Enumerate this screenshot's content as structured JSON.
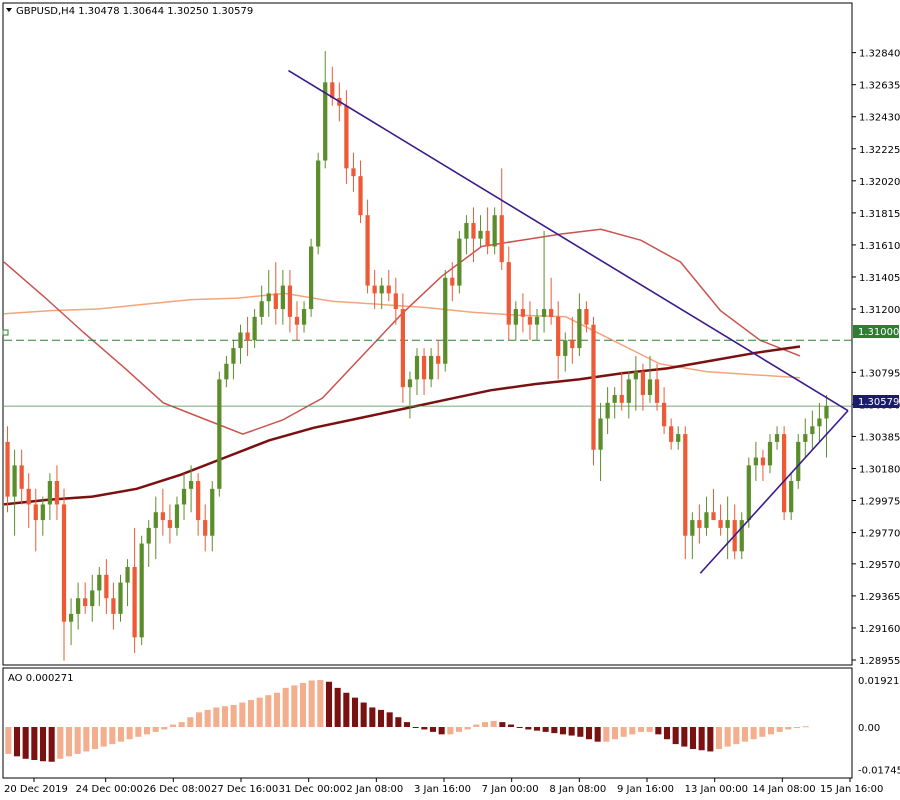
{
  "header": {
    "symbol_info": "GBPUSD,H4  1.30478 1.30644 1.30250 1.30579",
    "ao_label": "AO 0.000271"
  },
  "colors": {
    "bull": "#5b8e2a",
    "bear": "#ee5a36",
    "ma_fast": "#c9534f",
    "ma_mid": "#f4a37c",
    "ma_slow": "#7b1010",
    "trendline": "#3b1a8c",
    "hline": "#2e7d32",
    "ao_dark": "#7b1010",
    "ao_light": "#f4ad8d"
  },
  "chart_data": [
    {
      "type": "candlestick",
      "symbol": "GBPUSD",
      "timeframe": "H4",
      "ylim": [
        1.28955,
        1.3294
      ],
      "y_ticks": [
        "1.32840",
        "1.32635",
        "1.32430",
        "1.32225",
        "1.32020",
        "1.31815",
        "1.31610",
        "1.31405",
        "1.31200",
        "1.30795",
        "1.30590",
        "1.30385",
        "1.30180",
        "1.29975",
        "1.29770",
        "1.29570",
        "1.29365",
        "1.29160",
        "1.28955"
      ],
      "x_ticks": [
        "20 Dec 2019",
        "24 Dec 00:00",
        "26 Dec 08:00",
        "27 Dec 16:00",
        "31 Dec 00:00",
        "2 Jan 08:00",
        "3 Jan 16:00",
        "7 Jan 00:00",
        "8 Jan 08:00",
        "9 Jan 16:00",
        "13 Jan 00:00",
        "14 Jan 08:00",
        "15 Jan 16:00"
      ],
      "horizontal_level": {
        "value": 1.31,
        "label": "1.31000"
      },
      "last_price": {
        "value": 1.30579,
        "label": "1.30579"
      },
      "candles": [
        [
          1.3035,
          1.3045,
          1.299,
          1.3
        ],
        [
          1.3,
          1.303,
          1.2975,
          1.302
        ],
        [
          1.302,
          1.303,
          1.2995,
          1.3005
        ],
        [
          1.3005,
          1.3015,
          1.298,
          1.2995
        ],
        [
          1.2995,
          1.3005,
          1.2965,
          1.2985
        ],
        [
          1.2985,
          1.3,
          1.2975,
          1.2995
        ],
        [
          1.2995,
          1.3015,
          1.2985,
          1.301
        ],
        [
          1.301,
          1.302,
          1.2985,
          1.2995
        ],
        [
          1.2995,
          1.3005,
          1.2895,
          1.292
        ],
        [
          1.292,
          1.2935,
          1.2905,
          1.2925
        ],
        [
          1.2925,
          1.2945,
          1.2915,
          1.2935
        ],
        [
          1.2935,
          1.2945,
          1.2925,
          1.293
        ],
        [
          1.293,
          1.295,
          1.292,
          1.294
        ],
        [
          1.294,
          1.2955,
          1.293,
          1.295
        ],
        [
          1.295,
          1.296,
          1.2925,
          1.2935
        ],
        [
          1.2935,
          1.2945,
          1.2915,
          1.2925
        ],
        [
          1.2925,
          1.295,
          1.292,
          1.2945
        ],
        [
          1.2945,
          1.296,
          1.293,
          1.2955
        ],
        [
          1.2955,
          1.298,
          1.29,
          1.291
        ],
        [
          1.291,
          1.2975,
          1.2905,
          1.297
        ],
        [
          1.297,
          1.2985,
          1.2955,
          1.298
        ],
        [
          1.298,
          1.3,
          1.296,
          1.299
        ],
        [
          1.299,
          1.3005,
          1.2975,
          1.2985
        ],
        [
          1.2985,
          1.2995,
          1.297,
          1.298
        ],
        [
          1.298,
          1.3,
          1.2975,
          1.2995
        ],
        [
          1.2995,
          1.3015,
          1.2985,
          1.3005
        ],
        [
          1.3005,
          1.302,
          1.299,
          1.301
        ],
        [
          1.301,
          1.3015,
          1.2975,
          1.2985
        ],
        [
          1.2985,
          1.2995,
          1.2965,
          1.2975
        ],
        [
          1.2975,
          1.301,
          1.2965,
          1.3005
        ],
        [
          1.3005,
          1.308,
          1.3,
          1.3075
        ],
        [
          1.3075,
          1.309,
          1.307,
          1.3085
        ],
        [
          1.3085,
          1.31,
          1.3075,
          1.3095
        ],
        [
          1.3095,
          1.311,
          1.3085,
          1.3105
        ],
        [
          1.3105,
          1.3115,
          1.309,
          1.31
        ],
        [
          1.31,
          1.312,
          1.3095,
          1.3115
        ],
        [
          1.3115,
          1.3135,
          1.311,
          1.3125
        ],
        [
          1.3125,
          1.3145,
          1.3115,
          1.313
        ],
        [
          1.313,
          1.315,
          1.311,
          1.312
        ],
        [
          1.312,
          1.3145,
          1.311,
          1.3135
        ],
        [
          1.3135,
          1.3145,
          1.3105,
          1.3115
        ],
        [
          1.3115,
          1.3125,
          1.31,
          1.311
        ],
        [
          1.311,
          1.3125,
          1.3105,
          1.312
        ],
        [
          1.312,
          1.3165,
          1.3115,
          1.316
        ],
        [
          1.316,
          1.322,
          1.3155,
          1.3215
        ],
        [
          1.3215,
          1.3285,
          1.321,
          1.3265
        ],
        [
          1.3265,
          1.3275,
          1.325,
          1.3255
        ],
        [
          1.3255,
          1.3265,
          1.324,
          1.325
        ],
        [
          1.325,
          1.326,
          1.32,
          1.321
        ],
        [
          1.321,
          1.322,
          1.3195,
          1.3205
        ],
        [
          1.3205,
          1.3215,
          1.3175,
          1.318
        ],
        [
          1.318,
          1.319,
          1.313,
          1.3135
        ],
        [
          1.3135,
          1.3145,
          1.312,
          1.313
        ],
        [
          1.313,
          1.314,
          1.312,
          1.3135
        ],
        [
          1.3135,
          1.3145,
          1.3125,
          1.313
        ],
        [
          1.313,
          1.314,
          1.311,
          1.312
        ],
        [
          1.312,
          1.313,
          1.306,
          1.307
        ],
        [
          1.307,
          1.308,
          1.305,
          1.3075
        ],
        [
          1.3075,
          1.3095,
          1.3065,
          1.309
        ],
        [
          1.309,
          1.3095,
          1.3065,
          1.3075
        ],
        [
          1.3075,
          1.3095,
          1.307,
          1.309
        ],
        [
          1.309,
          1.31,
          1.3075,
          1.3085
        ],
        [
          1.3085,
          1.3145,
          1.308,
          1.314
        ],
        [
          1.314,
          1.315,
          1.3125,
          1.3135
        ],
        [
          1.3135,
          1.317,
          1.313,
          1.3165
        ],
        [
          1.3165,
          1.318,
          1.3155,
          1.3175
        ],
        [
          1.3175,
          1.3185,
          1.315,
          1.3165
        ],
        [
          1.3165,
          1.318,
          1.316,
          1.317
        ],
        [
          1.317,
          1.3185,
          1.3155,
          1.316
        ],
        [
          1.316,
          1.3185,
          1.3155,
          1.318
        ],
        [
          1.318,
          1.321,
          1.3145,
          1.315
        ],
        [
          1.315,
          1.316,
          1.31,
          1.311
        ],
        [
          1.311,
          1.3125,
          1.31,
          1.312
        ],
        [
          1.312,
          1.313,
          1.3105,
          1.3115
        ],
        [
          1.3115,
          1.3125,
          1.31,
          1.311
        ],
        [
          1.311,
          1.312,
          1.31,
          1.3115
        ],
        [
          1.3115,
          1.317,
          1.3105,
          1.312
        ],
        [
          1.312,
          1.314,
          1.311,
          1.3115
        ],
        [
          1.3115,
          1.3125,
          1.3075,
          1.309
        ],
        [
          1.309,
          1.3105,
          1.308,
          1.31
        ],
        [
          1.31,
          1.3115,
          1.3085,
          1.3095
        ],
        [
          1.3095,
          1.313,
          1.309,
          1.312
        ],
        [
          1.312,
          1.3125,
          1.3105,
          1.311
        ],
        [
          1.311,
          1.3115,
          1.302,
          1.303
        ],
        [
          1.303,
          1.306,
          1.301,
          1.305
        ],
        [
          1.305,
          1.307,
          1.304,
          1.306
        ],
        [
          1.306,
          1.307,
          1.305,
          1.3065
        ],
        [
          1.3065,
          1.308,
          1.3055,
          1.306
        ],
        [
          1.306,
          1.308,
          1.305,
          1.3075
        ],
        [
          1.3075,
          1.309,
          1.3055,
          1.308
        ],
        [
          1.308,
          1.3085,
          1.3055,
          1.3065
        ],
        [
          1.3065,
          1.309,
          1.306,
          1.3075
        ],
        [
          1.3075,
          1.3085,
          1.3055,
          1.306
        ],
        [
          1.306,
          1.307,
          1.304,
          1.3045
        ],
        [
          1.3045,
          1.305,
          1.303,
          1.3035
        ],
        [
          1.3035,
          1.3045,
          1.303,
          1.304
        ],
        [
          1.304,
          1.3045,
          1.296,
          1.2975
        ],
        [
          1.2975,
          1.299,
          1.296,
          1.2985
        ],
        [
          1.2985,
          1.2995,
          1.297,
          1.298
        ],
        [
          1.298,
          1.3,
          1.2975,
          1.299
        ],
        [
          1.299,
          1.3005,
          1.2985,
          1.2985
        ],
        [
          1.2985,
          1.2995,
          1.2975,
          1.298
        ],
        [
          1.298,
          1.3,
          1.296,
          1.2985
        ],
        [
          1.2985,
          1.2995,
          1.296,
          1.2965
        ],
        [
          1.2965,
          1.299,
          1.296,
          1.2985
        ],
        [
          1.2985,
          1.3025,
          1.298,
          1.302
        ],
        [
          1.302,
          1.3035,
          1.301,
          1.3025
        ],
        [
          1.3025,
          1.303,
          1.301,
          1.302
        ],
        [
          1.302,
          1.304,
          1.3015,
          1.3035
        ],
        [
          1.3035,
          1.3045,
          1.303,
          1.304
        ],
        [
          1.304,
          1.3045,
          1.2985,
          1.299
        ],
        [
          1.299,
          1.3015,
          1.2985,
          1.301
        ],
        [
          1.301,
          1.304,
          1.3005,
          1.3035
        ],
        [
          1.3035,
          1.305,
          1.3025,
          1.304
        ],
        [
          1.304,
          1.3055,
          1.303,
          1.3045
        ],
        [
          1.3045,
          1.306,
          1.3035,
          1.305
        ],
        [
          1.305,
          1.3065,
          1.3025,
          1.3058
        ]
      ],
      "ma_fast": [
        1.315,
        1.3128,
        1.3105,
        1.3083,
        1.306,
        1.305,
        1.304,
        1.3049,
        1.3063,
        1.309,
        1.3117,
        1.3141,
        1.316,
        1.3164,
        1.3168,
        1.3171,
        1.3164,
        1.315,
        1.3119,
        1.31,
        1.309
      ],
      "ma_mid": [
        1.3117,
        1.3119,
        1.312,
        1.3123,
        1.3126,
        1.3127,
        1.313,
        1.3125,
        1.3123,
        1.3121,
        1.3118,
        1.3116,
        1.3115,
        1.31,
        1.3085,
        1.308,
        1.3078,
        1.3076
      ],
      "ma_slow": [
        1.2995,
        1.2998,
        1.3,
        1.3005,
        1.3014,
        1.3025,
        1.3036,
        1.3044,
        1.305,
        1.3056,
        1.3062,
        1.3068,
        1.3072,
        1.3075,
        1.3079,
        1.3082,
        1.3087,
        1.3092,
        1.3096
      ],
      "trendlines": [
        {
          "from": [
            0.337,
            1.32725
          ],
          "to": [
            0.985,
            1.3055
          ]
        },
        {
          "from": [
            0.825,
            1.2951
          ],
          "to": [
            0.985,
            1.3055
          ]
        }
      ]
    },
    {
      "type": "bar",
      "title": "AO",
      "ylim": [
        -0.017456,
        0.019217
      ],
      "y_ticks": [
        "0.019217",
        "0.00",
        "-0.017456"
      ],
      "values": [
        -0.011,
        -0.012,
        -0.013,
        -0.0135,
        -0.014,
        -0.0142,
        -0.013,
        -0.012,
        -0.011,
        -0.01,
        -0.009,
        -0.008,
        -0.007,
        -0.006,
        -0.005,
        -0.004,
        -0.003,
        -0.002,
        -0.001,
        0.001,
        0.002,
        0.004,
        0.006,
        0.007,
        0.008,
        0.0085,
        0.009,
        0.01,
        0.011,
        0.012,
        0.013,
        0.014,
        0.016,
        0.017,
        0.018,
        0.019,
        0.0192,
        0.0185,
        0.016,
        0.014,
        0.012,
        0.01,
        0.008,
        0.007,
        0.006,
        0.004,
        0.002,
        0.0,
        -0.001,
        -0.002,
        -0.003,
        -0.003,
        -0.002,
        -0.001,
        0.001,
        0.002,
        0.0025,
        0.002,
        0.001,
        0.0,
        -0.001,
        -0.0015,
        -0.002,
        -0.0025,
        -0.003,
        -0.0035,
        -0.004,
        -0.005,
        -0.006,
        -0.006,
        -0.005,
        -0.004,
        -0.003,
        -0.002,
        -0.002,
        -0.003,
        -0.005,
        -0.007,
        -0.008,
        -0.009,
        -0.0095,
        -0.01,
        -0.009,
        -0.008,
        -0.007,
        -0.006,
        -0.005,
        -0.004,
        -0.003,
        -0.002,
        -0.001,
        0.0,
        0.0003
      ]
    }
  ]
}
